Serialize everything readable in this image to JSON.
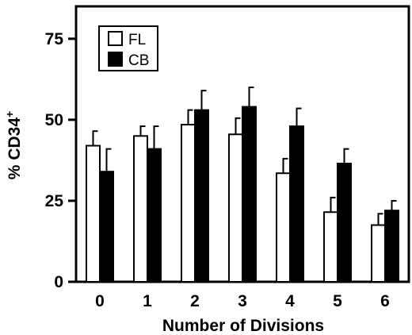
{
  "chart_data": {
    "type": "bar",
    "title": "",
    "xlabel": "Number of Divisions",
    "ylabel": "% CD34",
    "ylabel_superscript": "+",
    "categories": [
      "0",
      "1",
      "2",
      "3",
      "4",
      "5",
      "6"
    ],
    "ylim": [
      0,
      85
    ],
    "yticks": [
      0,
      25,
      50,
      75
    ],
    "series": [
      {
        "name": "FL",
        "color": "#ffffff",
        "values": [
          42,
          45,
          48.5,
          45.5,
          33.5,
          21.5,
          17.5
        ],
        "errors": [
          4.5,
          3,
          4.5,
          5,
          4.5,
          4.5,
          3.5
        ]
      },
      {
        "name": "CB",
        "color": "#000000",
        "values": [
          34,
          41,
          53,
          54,
          48,
          36.5,
          22
        ],
        "errors": [
          7,
          7,
          6,
          6,
          5.5,
          4.5,
          3
        ]
      }
    ],
    "legend_position": "top-left",
    "grid": false
  }
}
